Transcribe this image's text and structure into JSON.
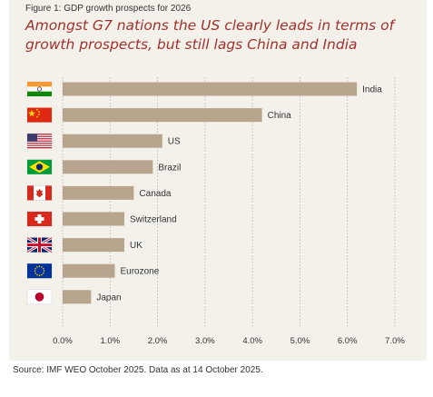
{
  "figure_label": "Figure 1: GDP growth prospects for 2026",
  "title": "Amongst G7 nations the US clearly leads in terms of growth prospects, but still lags China and India",
  "source": "Source: IMF WEO October 2025. Data as at 14 October 2025.",
  "colors": {
    "bar": "#b8a58e",
    "grid": "#b0b0b0",
    "title": "#a0312c",
    "panel": "#f3f1ea"
  },
  "chart_data": {
    "type": "bar",
    "orientation": "horizontal",
    "categories": [
      "India",
      "China",
      "US",
      "Brazil",
      "Canada",
      "Switzerland",
      "UK",
      "Eurozone",
      "Japan"
    ],
    "flags": [
      "india-flag-icon",
      "china-flag-icon",
      "us-flag-icon",
      "brazil-flag-icon",
      "canada-flag-icon",
      "switzerland-flag-icon",
      "uk-flag-icon",
      "eurozone-flag-icon",
      "japan-flag-icon"
    ],
    "values": [
      6.2,
      4.2,
      2.1,
      1.9,
      1.5,
      1.3,
      1.3,
      1.1,
      0.6
    ],
    "xlim": [
      0,
      7
    ],
    "ticks": [
      "0.0%",
      "1.0%",
      "2.0%",
      "3.0%",
      "4.0%",
      "5.0%",
      "6.0%",
      "7.0%"
    ],
    "grid": "vertical-dashed",
    "legend": "none"
  }
}
